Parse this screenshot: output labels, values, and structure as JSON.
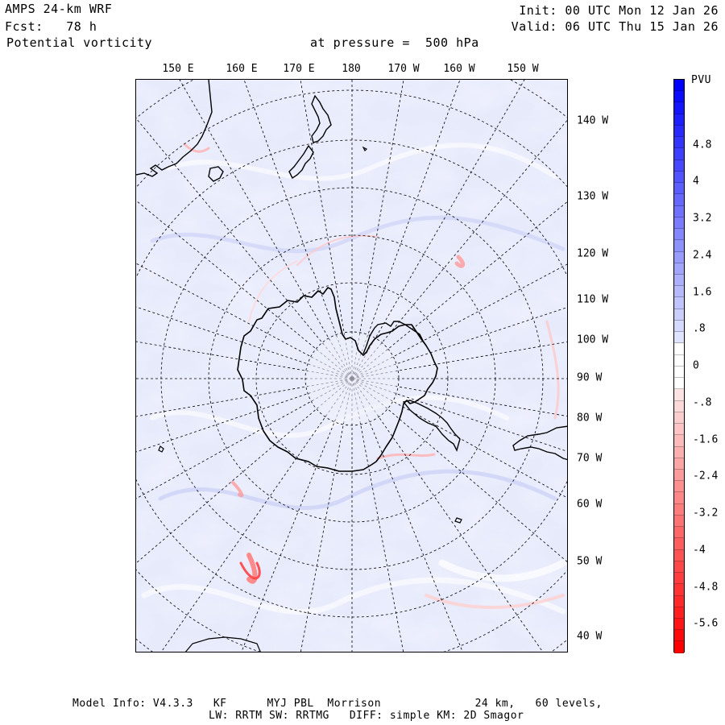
{
  "header": {
    "model": "AMPS 24-km WRF",
    "fcst": "Fcst:   78 h",
    "field": "Potential vorticity",
    "pressure": "at pressure =  500 hPa",
    "init": "Init: 00 UTC Mon 12 Jan 26",
    "valid": "Valid: 06 UTC Thu 15 Jan 26"
  },
  "map": {
    "top_lon_labels": [
      "150 E",
      "160 E",
      "170 E",
      "180",
      "170 W",
      "160 W",
      "150 W"
    ],
    "right_lon_labels": [
      "140 W",
      "130 W",
      "120 W",
      "110 W",
      "100 W",
      "90 W",
      "80 W",
      "70 W",
      "60 W",
      "50 W",
      "40 W"
    ]
  },
  "colorbar": {
    "unit": "PVU",
    "labels": [
      "4.8",
      "4",
      "3.2",
      "2.4",
      "1.6",
      ".8",
      "0",
      "-.8",
      "-1.6",
      "-2.4",
      "-3.2",
      "-4",
      "-4.8",
      "-5.6"
    ],
    "colors": {
      "positive_max": "#0000ff",
      "positive_min": "#dfe3fb",
      "neutral": "#ffffff",
      "negative_min": "#fbe3e3",
      "negative_max": "#ff0000"
    }
  },
  "footer": {
    "line1": "Model Info: V4.3.3   KF      MYJ PBL  Morrison              24 km,   60 levels,",
    "line2": "LW: RRTM SW: RRTMG   DIFF: simple KM: 2D Smagor"
  }
}
